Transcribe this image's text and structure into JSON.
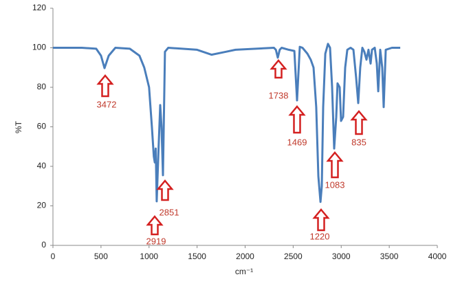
{
  "chart_data": {
    "type": "line",
    "y_label": "%T",
    "x_label": "cm⁻¹",
    "xlim": [
      0,
      4000
    ],
    "xticks": [
      0,
      500,
      1000,
      1500,
      2000,
      2500,
      3000,
      3500,
      4000
    ],
    "ylim": [
      0,
      120
    ],
    "yticks": [
      0,
      20,
      40,
      60,
      80,
      100,
      120
    ],
    "grid": false,
    "series": [
      {
        "color": "#4a7ebb",
        "x": [
          0,
          300,
          450,
          500,
          537,
          580,
          650,
          800,
          900,
          950,
          1000,
          1030,
          1050,
          1060,
          1070,
          1080,
          1100,
          1116,
          1130,
          1145,
          1166,
          1200,
          1500,
          1650,
          1800,
          1900,
          2300,
          2320,
          2340,
          2360,
          2380,
          2454,
          2512,
          2540,
          2569,
          2597,
          2648,
          2683,
          2712,
          2740,
          2762,
          2784,
          2798,
          2812,
          2834,
          2862,
          2884,
          2905,
          2927,
          2948,
          2962,
          2984,
          2998,
          3020,
          3041,
          3063,
          3098,
          3127,
          3155,
          3177,
          3198,
          3220,
          3241,
          3263,
          3284,
          3306,
          3320,
          3349,
          3370,
          3385,
          3406,
          3427,
          3442,
          3463,
          3528,
          3614
        ],
        "values": [
          100,
          100,
          99.5,
          96,
          89.7,
          96,
          100,
          99.5,
          96,
          90,
          80,
          60,
          45,
          42,
          49,
          22.3,
          50,
          71,
          60,
          35.5,
          98,
          100,
          99,
          96.5,
          98,
          99,
          100,
          99,
          95,
          99,
          100,
          99,
          98.4,
          73.4,
          100.5,
          100,
          97,
          94,
          90,
          70,
          35,
          22,
          30,
          70,
          97,
          102,
          100,
          80,
          49,
          65,
          82,
          80,
          63,
          65,
          90,
          99,
          100,
          99,
          85,
          72,
          90,
          100,
          98,
          94,
          99,
          92,
          99,
          100,
          92,
          78,
          99,
          90,
          70,
          99,
          100,
          100
        ]
      }
    ],
    "annotations": [
      "3472",
      "2919",
      "2851",
      "1738",
      "1469",
      "1220",
      "1083",
      "835"
    ]
  }
}
